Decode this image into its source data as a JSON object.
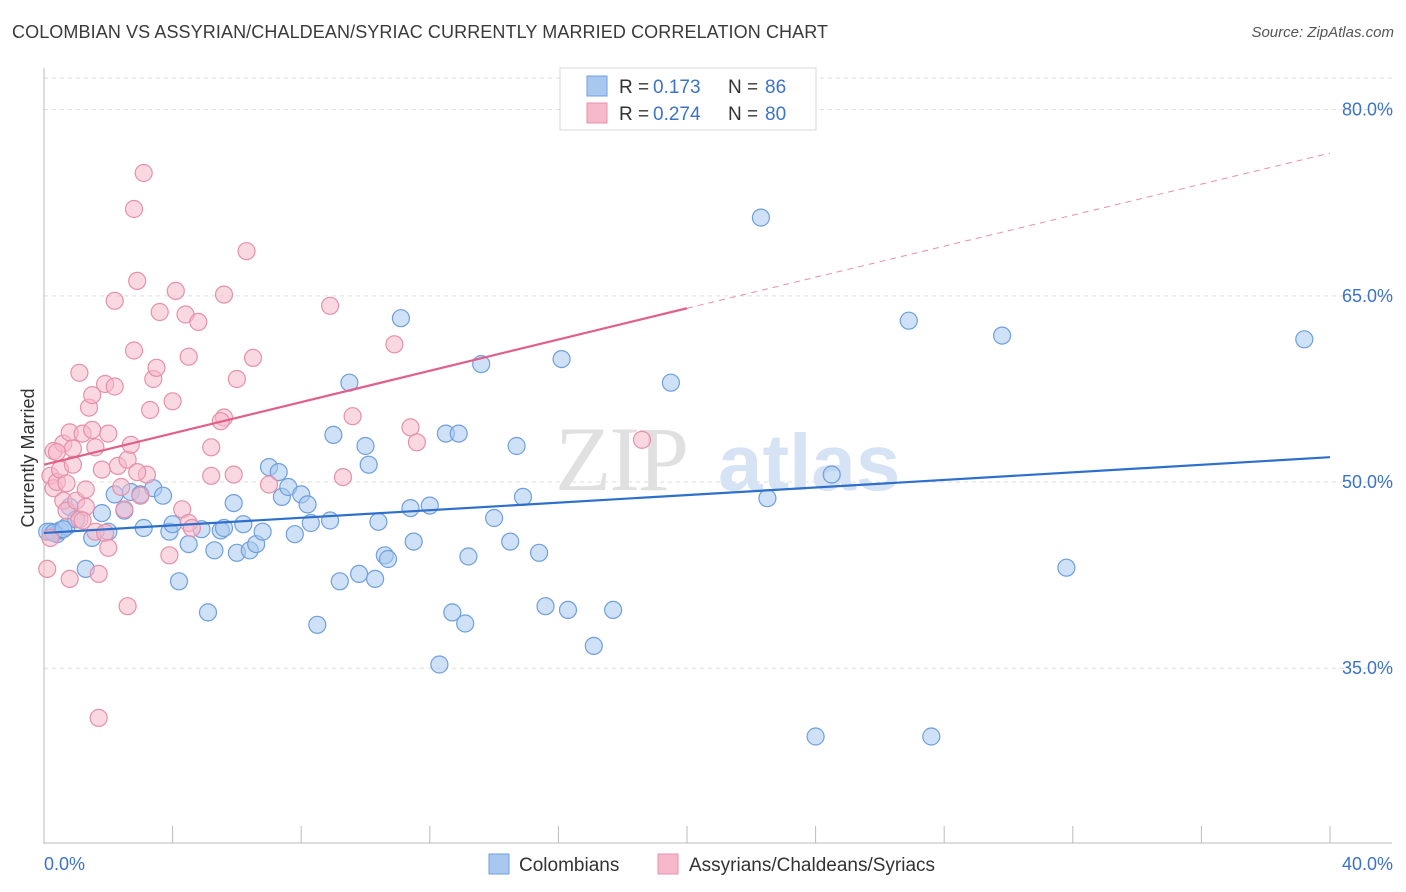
{
  "title": "COLOMBIAN VS ASSYRIAN/CHALDEAN/SYRIAC CURRENTLY MARRIED CORRELATION CHART",
  "source": "Source: ZipAtlas.com",
  "watermark": {
    "zip": "ZIP",
    "atlas": "atlas"
  },
  "legend": {
    "rows": [
      {
        "r_label": "R =",
        "r_value": "0.173",
        "n_label": "N =",
        "n_value": "86",
        "color": "#a8c8f0"
      },
      {
        "r_label": "R =",
        "r_value": "0.274",
        "n_label": "N =",
        "n_value": "80",
        "color": "#f6b8cb"
      }
    ]
  },
  "chart_data": {
    "type": "scatter",
    "ylabel": "Currently Married",
    "xlim": [
      0,
      40
    ],
    "ylim": [
      21,
      84
    ],
    "y_ticks": [
      {
        "value": 80,
        "label": "80.0%"
      },
      {
        "value": 65,
        "label": "65.0%"
      },
      {
        "value": 50,
        "label": "50.0%"
      },
      {
        "value": 35,
        "label": "35.0%"
      }
    ],
    "x_tick_labels": [
      {
        "value": 0,
        "label": "0.0%"
      },
      {
        "value": 40,
        "label": "40.0%"
      }
    ],
    "x_minor_ticks": [
      0,
      4,
      8,
      12,
      16,
      20,
      24,
      28,
      32,
      36,
      40
    ],
    "grid": "horizontal dashed",
    "legend_position": "top-center",
    "series": [
      {
        "name": "Colombians",
        "color": "#a8c8f0",
        "stroke": "#6f9fdc",
        "trend": {
          "x": [
            0,
            40
          ],
          "y": [
            45.9,
            52.0
          ],
          "color": "#2e6fcc"
        },
        "points": [
          [
            0.2,
            46.0
          ],
          [
            0.4,
            45.8
          ],
          [
            0.5,
            46.1
          ],
          [
            0.7,
            46.4
          ],
          [
            0.8,
            48.0
          ],
          [
            1.0,
            47.0
          ],
          [
            1.3,
            43.0
          ],
          [
            1.5,
            45.5
          ],
          [
            1.8,
            47.5
          ],
          [
            2.0,
            46.0
          ],
          [
            2.2,
            49.0
          ],
          [
            2.5,
            47.7
          ],
          [
            2.7,
            49.2
          ],
          [
            3.0,
            49.0
          ],
          [
            3.1,
            46.3
          ],
          [
            3.4,
            49.5
          ],
          [
            3.7,
            48.9
          ],
          [
            3.9,
            46.0
          ],
          [
            4.0,
            46.6
          ],
          [
            4.2,
            42.0
          ],
          [
            4.5,
            45.0
          ],
          [
            4.9,
            46.2
          ],
          [
            5.1,
            39.5
          ],
          [
            5.3,
            44.5
          ],
          [
            5.5,
            46.1
          ],
          [
            5.6,
            46.3
          ],
          [
            5.9,
            48.3
          ],
          [
            6.0,
            44.3
          ],
          [
            6.2,
            46.6
          ],
          [
            6.4,
            44.5
          ],
          [
            6.6,
            45.0
          ],
          [
            6.8,
            46.0
          ],
          [
            7.0,
            51.2
          ],
          [
            7.3,
            50.8
          ],
          [
            7.4,
            48.8
          ],
          [
            7.6,
            49.6
          ],
          [
            7.8,
            45.8
          ],
          [
            8.0,
            49.0
          ],
          [
            8.2,
            48.2
          ],
          [
            8.3,
            46.7
          ],
          [
            8.5,
            38.5
          ],
          [
            8.9,
            46.9
          ],
          [
            9.0,
            53.8
          ],
          [
            9.2,
            42.0
          ],
          [
            9.5,
            58.0
          ],
          [
            9.8,
            42.6
          ],
          [
            10.0,
            52.9
          ],
          [
            10.1,
            51.4
          ],
          [
            10.3,
            42.2
          ],
          [
            10.4,
            46.8
          ],
          [
            10.6,
            44.1
          ],
          [
            10.7,
            43.8
          ],
          [
            11.1,
            63.2
          ],
          [
            11.4,
            47.9
          ],
          [
            11.5,
            45.2
          ],
          [
            12.0,
            48.1
          ],
          [
            12.3,
            35.3
          ],
          [
            12.5,
            53.9
          ],
          [
            12.7,
            39.5
          ],
          [
            12.9,
            53.9
          ],
          [
            13.1,
            38.6
          ],
          [
            13.2,
            44.0
          ],
          [
            13.6,
            59.5
          ],
          [
            14.0,
            47.1
          ],
          [
            14.5,
            45.2
          ],
          [
            14.7,
            52.9
          ],
          [
            14.9,
            48.8
          ],
          [
            15.4,
            44.3
          ],
          [
            15.6,
            40.0
          ],
          [
            16.1,
            59.9
          ],
          [
            16.3,
            39.7
          ],
          [
            17.1,
            36.8
          ],
          [
            17.7,
            39.7
          ],
          [
            19.5,
            58.0
          ],
          [
            22.3,
            71.3
          ],
          [
            22.5,
            48.7
          ],
          [
            24.0,
            29.5
          ],
          [
            24.5,
            50.6
          ],
          [
            26.9,
            63.0
          ],
          [
            27.6,
            29.5
          ],
          [
            29.8,
            61.8
          ],
          [
            31.8,
            43.1
          ],
          [
            39.2,
            61.5
          ],
          [
            0.1,
            46.0
          ],
          [
            0.3,
            45.9
          ],
          [
            0.6,
            46.2
          ]
        ]
      },
      {
        "name": "Assyrians/Chaldeans/Syriacs",
        "color": "#f6b8cb",
        "stroke": "#e690ab",
        "trend": {
          "x": [
            0,
            20
          ],
          "y": [
            51.4,
            64.0
          ],
          "color": "#e0608a",
          "dash_extension_to": [
            40,
            76.5
          ]
        },
        "points": [
          [
            0.1,
            43.0
          ],
          [
            0.2,
            45.5
          ],
          [
            0.2,
            50.5
          ],
          [
            0.3,
            49.5
          ],
          [
            0.3,
            52.5
          ],
          [
            0.4,
            50.0
          ],
          [
            0.5,
            51.0
          ],
          [
            0.6,
            53.1
          ],
          [
            0.6,
            48.5
          ],
          [
            0.7,
            49.9
          ],
          [
            0.7,
            47.7
          ],
          [
            0.8,
            42.2
          ],
          [
            0.8,
            54.0
          ],
          [
            0.9,
            52.7
          ],
          [
            0.9,
            51.4
          ],
          [
            1.0,
            48.5
          ],
          [
            1.1,
            58.8
          ],
          [
            1.1,
            47.0
          ],
          [
            1.2,
            53.9
          ],
          [
            1.3,
            49.4
          ],
          [
            1.3,
            48.0
          ],
          [
            1.4,
            56.0
          ],
          [
            1.5,
            57.0
          ],
          [
            1.5,
            54.2
          ],
          [
            1.6,
            46.0
          ],
          [
            1.6,
            52.8
          ],
          [
            1.7,
            42.6
          ],
          [
            1.7,
            31.0
          ],
          [
            1.8,
            51.0
          ],
          [
            1.9,
            45.9
          ],
          [
            1.9,
            57.9
          ],
          [
            2.0,
            44.7
          ],
          [
            2.0,
            53.9
          ],
          [
            2.2,
            57.7
          ],
          [
            2.2,
            64.6
          ],
          [
            2.3,
            51.3
          ],
          [
            2.4,
            49.6
          ],
          [
            2.5,
            47.8
          ],
          [
            2.6,
            40.0
          ],
          [
            2.6,
            51.8
          ],
          [
            2.7,
            53.0
          ],
          [
            2.8,
            60.6
          ],
          [
            2.8,
            72.0
          ],
          [
            2.9,
            66.2
          ],
          [
            3.0,
            48.9
          ],
          [
            3.1,
            74.9
          ],
          [
            3.2,
            50.6
          ],
          [
            3.3,
            55.8
          ],
          [
            3.4,
            58.3
          ],
          [
            3.5,
            59.2
          ],
          [
            3.6,
            63.7
          ],
          [
            3.9,
            44.1
          ],
          [
            4.0,
            56.5
          ],
          [
            4.1,
            65.4
          ],
          [
            4.3,
            47.8
          ],
          [
            4.4,
            63.5
          ],
          [
            4.5,
            60.1
          ],
          [
            4.5,
            46.7
          ],
          [
            4.6,
            46.3
          ],
          [
            4.8,
            62.9
          ],
          [
            5.2,
            50.5
          ],
          [
            5.2,
            52.8
          ],
          [
            5.6,
            55.2
          ],
          [
            5.6,
            65.1
          ],
          [
            5.9,
            50.6
          ],
          [
            6.0,
            58.3
          ],
          [
            6.3,
            68.6
          ],
          [
            6.5,
            60.0
          ],
          [
            7.0,
            49.8
          ],
          [
            8.9,
            64.2
          ],
          [
            9.3,
            50.4
          ],
          [
            9.6,
            55.3
          ],
          [
            10.9,
            61.1
          ],
          [
            11.4,
            54.4
          ],
          [
            11.6,
            53.2
          ],
          [
            18.6,
            53.4
          ],
          [
            0.4,
            52.4
          ],
          [
            1.2,
            46.9
          ],
          [
            2.9,
            50.8
          ],
          [
            5.5,
            54.9
          ]
        ]
      }
    ]
  },
  "bottom_legend": [
    {
      "label": "Colombians",
      "color": "#a8c8f0"
    },
    {
      "label": "Assyrians/Chaldeans/Syriacs",
      "color": "#f6b8cb"
    }
  ]
}
